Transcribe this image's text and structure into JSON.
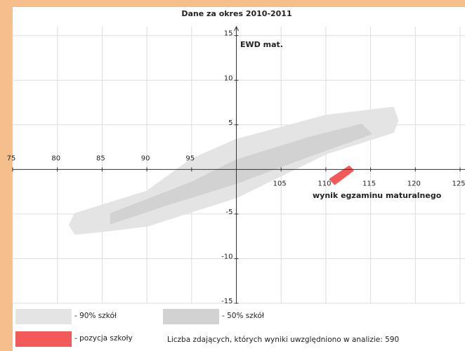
{
  "chart_data": {
    "type": "region",
    "title": "Dane za okres 2010-2011",
    "ylabel": "EWD mat.",
    "xlabel": "wynik egzaminu maturalnego",
    "footnote": "Liczba zdających, których wyniki uwzględniono w analizie: 590",
    "xlim": [
      75,
      125
    ],
    "ylim": [
      -15,
      16
    ],
    "xticks": [
      75,
      80,
      85,
      90,
      95,
      105,
      110,
      115,
      120,
      125
    ],
    "yticks": [
      -15,
      -10,
      -5,
      5,
      10,
      15
    ],
    "origin": {
      "x": 100,
      "y": 0
    },
    "grid": true,
    "series": [
      {
        "name": "- 90% szkół",
        "color": "#e4e4e4",
        "x": [
          82,
          90,
          95,
          100,
          110,
          117.5,
          118,
          117.5,
          110,
          100,
          90,
          85,
          82,
          81.4
        ],
        "y": [
          -5,
          -2.5,
          1.1,
          3.3,
          6,
          6.9,
          5.5,
          4.2,
          1.8,
          -3.1,
          -6.3,
          -6.9,
          -7.2,
          -6.2
        ]
      },
      {
        "name": "- 50% szkół",
        "color": "#d2d2d2",
        "x": [
          86,
          95,
          100,
          108,
          114,
          115,
          108,
          100,
          92,
          86
        ],
        "y": [
          -5,
          -1.5,
          1,
          3.5,
          5,
          4,
          1.5,
          -1.5,
          -4,
          -6
        ]
      },
      {
        "name": "- pozycja szkoły",
        "color": "#f25a5a",
        "x": [
          110.5,
          112.6,
          113,
          111
        ],
        "y": [
          -1.1,
          0.3,
          -0.1,
          -1.6
        ]
      }
    ]
  }
}
